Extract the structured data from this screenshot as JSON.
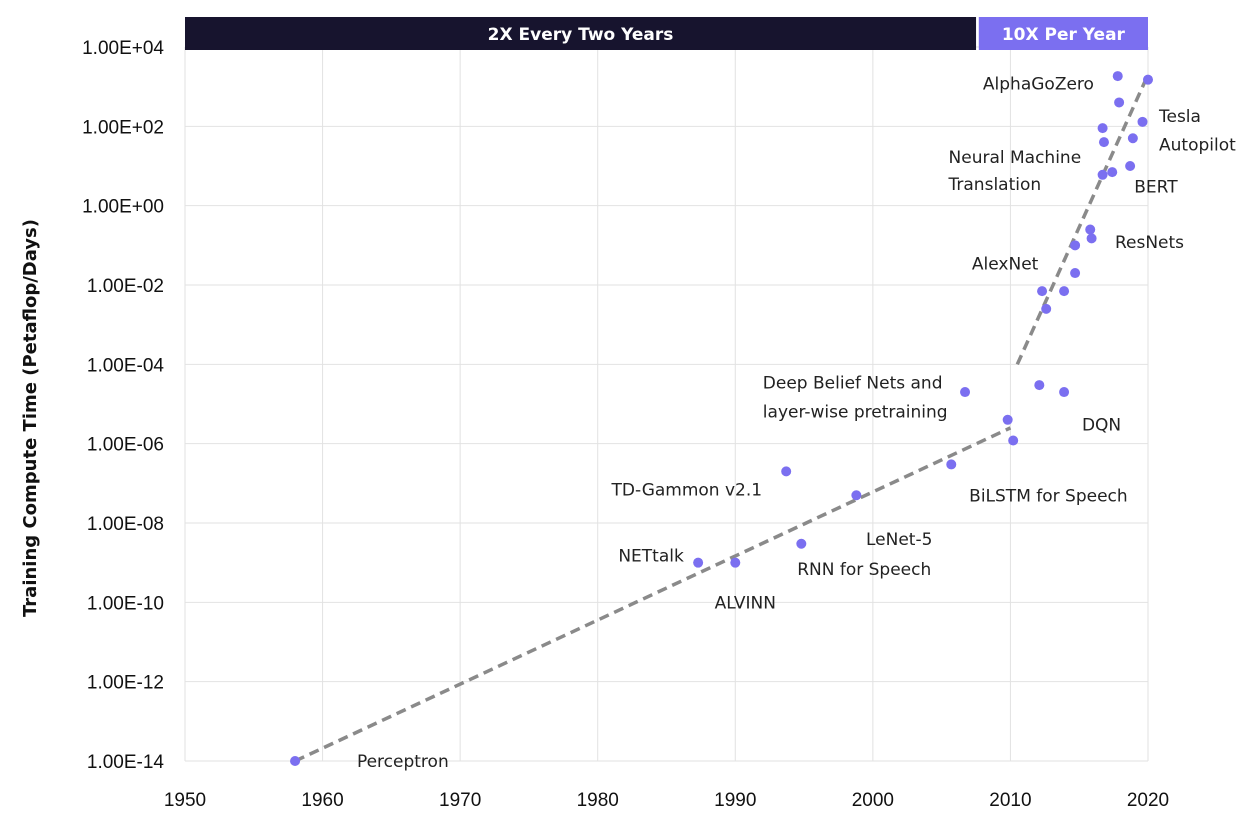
{
  "chart_data": {
    "type": "scatter",
    "title": "",
    "xlabel": "",
    "ylabel": "Training Compute Time (Petaflop/Days)",
    "xlim": [
      1950,
      2020
    ],
    "ylim_log10": [
      -14,
      4
    ],
    "y_scale": "log",
    "grid": true,
    "x_ticks": [
      "1950",
      "1960",
      "1970",
      "1980",
      "1990",
      "2000",
      "2010",
      "2020"
    ],
    "y_ticks": [
      "1.00E+04",
      "1.00E+02",
      "1.00E+00",
      "1.00E-02",
      "1.00E-04",
      "1.00E-06",
      "1.00E-08",
      "1.00E-10",
      "1.00E-12",
      "1.00E-14"
    ],
    "bands": [
      {
        "label": "2X Every Two Years",
        "x_from": 1950,
        "x_to": 2007.5,
        "color": "#17142e"
      },
      {
        "label": "10X Per Year",
        "x_from": 2007.7,
        "x_to": 2020,
        "color": "#7b6ff0"
      }
    ],
    "point_color": "#7b6ff0",
    "trend_color": "#8a8a8a",
    "points": [
      {
        "x": 1958,
        "y": 1e-14
      },
      {
        "x": 1987.3,
        "y": 1e-09
      },
      {
        "x": 1990,
        "y": 1e-09
      },
      {
        "x": 1993.7,
        "y": 2e-07
      },
      {
        "x": 1994.8,
        "y": 3e-09
      },
      {
        "x": 1998.8,
        "y": 5e-08
      },
      {
        "x": 2005.7,
        "y": 3e-07
      },
      {
        "x": 2006.7,
        "y": 2e-05
      },
      {
        "x": 2009.8,
        "y": 4e-06
      },
      {
        "x": 2010.2,
        "y": 1.2e-06
      },
      {
        "x": 2012.1,
        "y": 3e-05
      },
      {
        "x": 2013.9,
        "y": 2e-05
      },
      {
        "x": 2012.3,
        "y": 0.007
      },
      {
        "x": 2012.6,
        "y": 0.0025
      },
      {
        "x": 2013.9,
        "y": 0.007
      },
      {
        "x": 2014.7,
        "y": 0.02
      },
      {
        "x": 2014.7,
        "y": 0.1
      },
      {
        "x": 2015.9,
        "y": 0.15
      },
      {
        "x": 2015.8,
        "y": 0.25
      },
      {
        "x": 2016.7,
        "y": 6
      },
      {
        "x": 2017.4,
        "y": 7
      },
      {
        "x": 2018.7,
        "y": 10
      },
      {
        "x": 2016.8,
        "y": 40
      },
      {
        "x": 2016.7,
        "y": 90
      },
      {
        "x": 2018.9,
        "y": 50
      },
      {
        "x": 2017.9,
        "y": 400
      },
      {
        "x": 2019.6,
        "y": 130
      },
      {
        "x": 2017.8,
        "y": 1850
      },
      {
        "x": 2020,
        "y": 1500
      }
    ],
    "trend_lines": [
      {
        "from": [
          1958,
          1e-14
        ],
        "to": [
          2010,
          2.5e-06
        ]
      },
      {
        "from": [
          2010.5,
          0.0001
        ],
        "to": [
          2020,
          2000
        ]
      }
    ],
    "annotations": [
      {
        "text": "Perceptron",
        "x": 1962.5,
        "y": 1e-14
      },
      {
        "text": "NETtalk",
        "x": 1981.5,
        "y": 1.5e-09
      },
      {
        "text": "ALVINN",
        "x": 1988.5,
        "y": 1e-10
      },
      {
        "text": "TD-Gammon v2.1",
        "x": 1981,
        "y": 7e-08
      },
      {
        "text": "RNN for Speech",
        "x": 1994.5,
        "y": 7e-10
      },
      {
        "text": "LeNet-5",
        "x": 1999.5,
        "y": 4e-09
      },
      {
        "text": "BiLSTM for Speech",
        "x": 2007,
        "y": 5e-08
      },
      {
        "text": "Deep Belief Nets and",
        "x": 1992,
        "y": 3.5e-05
      },
      {
        "text": "layer-wise pretraining",
        "x": 1992,
        "y": 6.5e-06
      },
      {
        "text": "DQN",
        "x": 2015.2,
        "y": 3e-06
      },
      {
        "text": "AlexNet",
        "x": 2007.2,
        "y": 0.035
      },
      {
        "text": "ResNets",
        "x": 2017.6,
        "y": 0.12
      },
      {
        "text": "Neural Machine",
        "x": 2005.5,
        "y": 17
      },
      {
        "text": "Translation",
        "x": 2005.5,
        "y": 3.5
      },
      {
        "text": "BERT",
        "x": 2019,
        "y": 3
      },
      {
        "text": "AlphaGoZero",
        "x": 2008,
        "y": 1200
      },
      {
        "text": "Tesla",
        "x": 2020.8,
        "y": 180
      },
      {
        "text": "Autopilot",
        "x": 2020.8,
        "y": 35
      }
    ]
  }
}
